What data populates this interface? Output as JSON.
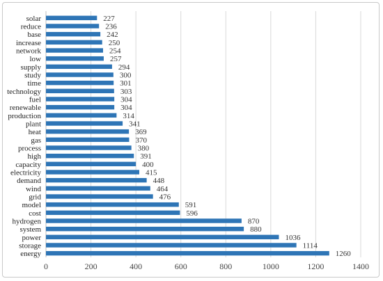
{
  "chart_data": {
    "type": "bar",
    "orientation": "horizontal",
    "categories": [
      "energy",
      "storage",
      "power",
      "system",
      "hydrogen",
      "cost",
      "model",
      "grid",
      "wind",
      "demand",
      "electricity",
      "capacity",
      "high",
      "process",
      "gas",
      "heat",
      "plant",
      "production",
      "renewable",
      "fuel",
      "technology",
      "time",
      "study",
      "supply",
      "low",
      "network",
      "increase",
      "base",
      "reduce",
      "solar"
    ],
    "values": [
      1260,
      1114,
      1036,
      880,
      870,
      596,
      591,
      476,
      464,
      448,
      415,
      400,
      391,
      380,
      370,
      369,
      341,
      314,
      304,
      304,
      303,
      301,
      300,
      294,
      257,
      254,
      250,
      242,
      236,
      227
    ],
    "value_labels": [
      "1260",
      "1114",
      "1036",
      "880",
      "870",
      "596",
      "591",
      "476",
      "464",
      "448",
      "415",
      "400",
      "391",
      "380",
      "370",
      "369",
      "341",
      "314",
      "304",
      "304",
      "303",
      "301",
      "300",
      "294",
      "257",
      "254",
      "250",
      "242",
      "236",
      "227"
    ],
    "xlim": [
      0,
      1400
    ],
    "xticks": [
      "0",
      "200",
      "400",
      "600",
      "800",
      "1000",
      "1200",
      "1400"
    ],
    "xtick_values": [
      0,
      200,
      400,
      600,
      800,
      1000,
      1200,
      1400
    ],
    "title": "",
    "xlabel": "",
    "ylabel": "",
    "grid": "vertical",
    "legend": "none",
    "bar_color": "#2e75b6"
  }
}
